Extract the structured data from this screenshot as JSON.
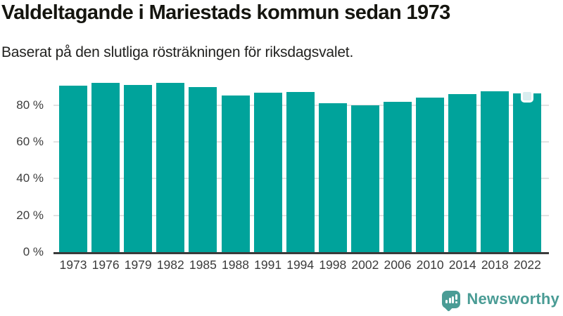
{
  "header": {
    "title": "Valdeltagande i Mariestads kommun sedan 1973",
    "subtitle": "Baserat på den slutliga rösträkningen för riksdagsvalet."
  },
  "footer": {
    "brand": "Newsworthy",
    "logo_icon": "newsworthy-speech-bubble-barchart-icon"
  },
  "colors": {
    "bar": "#00a39b",
    "grid": "#e2e2e2",
    "axis": "#3b3b3b",
    "tick_text": "#3d3d3d",
    "title_text": "#15150f",
    "brand": "#4a9c95",
    "highlight_marker_fill": "#d9edef",
    "highlight_marker_border": "#ffffff"
  },
  "chart_data": {
    "type": "bar",
    "title": "Valdeltagande i Mariestads kommun sedan 1973",
    "subtitle": "Baserat på den slutliga rösträkningen för riksdagsvalet.",
    "categories": [
      "1973",
      "1976",
      "1979",
      "1982",
      "1985",
      "1988",
      "1991",
      "1994",
      "1998",
      "2002",
      "2006",
      "2010",
      "2014",
      "2018",
      "2022"
    ],
    "values": [
      90.6,
      92.0,
      90.8,
      92.0,
      89.8,
      85.3,
      86.7,
      87.1,
      81.2,
      79.8,
      81.9,
      84.0,
      86.0,
      87.7,
      86.4
    ],
    "unit": "%",
    "xlabel": "",
    "ylabel": "",
    "ylim": [
      0,
      97.5
    ],
    "ytick_values": [
      0,
      20,
      40,
      60,
      80
    ],
    "ytick_labels": [
      "0 %",
      "20 %",
      "40 %",
      "60 %",
      "80 %"
    ],
    "grid": "horizontal",
    "legend": "none",
    "highlight": {
      "category": "2022",
      "marker": "rounded-square"
    }
  }
}
